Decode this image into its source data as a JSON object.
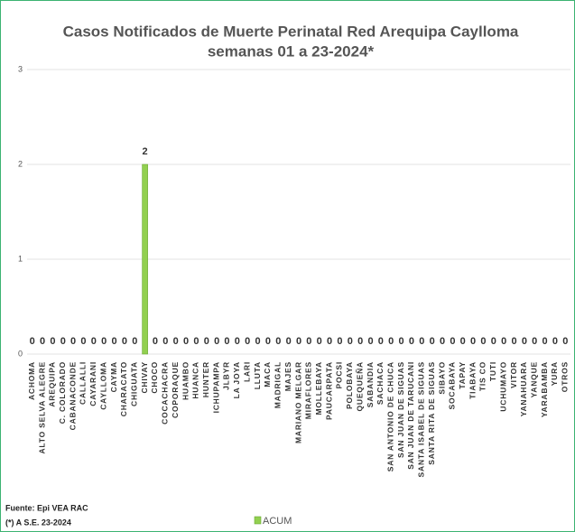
{
  "chart_data": {
    "type": "bar",
    "title": "Casos Notificados de Muerte Perinatal Red Arequipa Caylloma",
    "subtitle": "semanas 01 a 23-2024*",
    "categories": [
      "ACHOMA",
      "ALTO SELVA ALEGRE",
      "AREQUIPA",
      "C. COLORADO",
      "CABANACONDE",
      "CALLALLI",
      "CAYARANI",
      "CAYLLOMA",
      "CAYMA",
      "CHARACATO",
      "CHIGUATA",
      "CHIVAY",
      "CHOCO",
      "COCACHACRA",
      "COPORAQUE",
      "HUAMBO",
      "HUANCA",
      "HUNTER",
      "ICHUPAMPA",
      "JLBYR",
      "LA JOYA",
      "LARI",
      "LLUTA",
      "MACA",
      "MADRIGAL",
      "MAJES",
      "MARIANO MELGAR",
      "MIRAFLORES",
      "MOLLEBAYA",
      "PAUCARPATA",
      "POCSI",
      "POLOBAYA",
      "QUEQUEÑA",
      "SABANDIA",
      "SACHACA",
      "SAN ANTONIO DE CHUCA",
      "SAN JUAN DE SIGUAS",
      "SAN JUAN DE TARUCANI",
      "SANTA ISABEL DE SIGUAS",
      "SANTA RITA DE SIGUAS",
      "SIBAYO",
      "SOCABAYA",
      "TAPAY",
      "TIABAYA",
      "TIS CO",
      "TUTI",
      "UCHUMAYO",
      "VITOR",
      "YANAHUARA",
      "YANQUE",
      "YARABAMBA",
      "YURA",
      "OTROS"
    ],
    "series": [
      {
        "name": "ACUM",
        "color": "#92d050",
        "values": [
          0,
          0,
          0,
          0,
          0,
          0,
          0,
          0,
          0,
          0,
          0,
          2,
          0,
          0,
          0,
          0,
          0,
          0,
          0,
          0,
          0,
          0,
          0,
          0,
          0,
          0,
          0,
          0,
          0,
          0,
          0,
          0,
          0,
          0,
          0,
          0,
          0,
          0,
          0,
          0,
          0,
          0,
          0,
          0,
          0,
          0,
          0,
          0,
          0,
          0,
          0,
          0,
          0
        ]
      }
    ],
    "ylim": [
      0,
      3
    ],
    "yticks": [
      0,
      1,
      2,
      3
    ],
    "grid": true,
    "notes": [
      "Fuente: Epi VEA RAC",
      "(*) A S.E. 23-2024"
    ]
  }
}
